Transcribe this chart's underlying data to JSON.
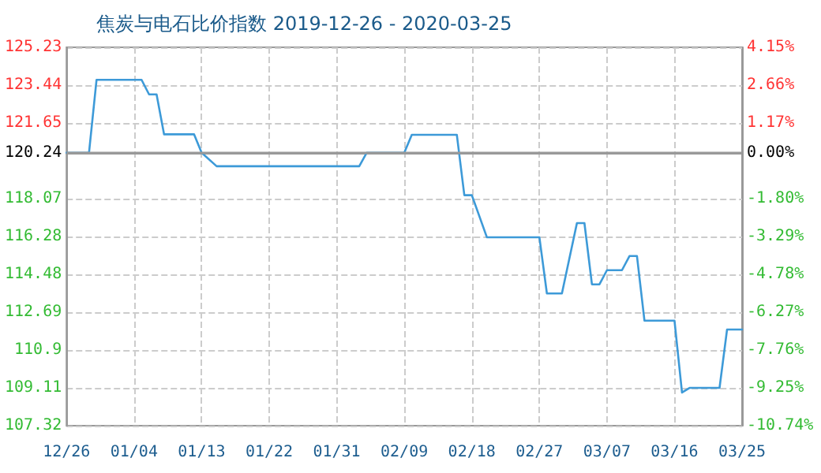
{
  "chart_data": {
    "type": "line",
    "title": "焦炭与电石比价指数 2019-12-26 - 2020-03-25",
    "x": [
      "2019-12-26",
      "2019-12-29",
      "2019-12-30",
      "2020-01-05",
      "2020-01-06",
      "2020-01-07",
      "2020-01-08",
      "2020-01-12",
      "2020-01-13",
      "2020-01-15",
      "2020-02-03",
      "2020-02-04",
      "2020-02-09",
      "2020-02-10",
      "2020-02-16",
      "2020-02-17",
      "2020-02-18",
      "2020-02-20",
      "2020-02-27",
      "2020-02-28",
      "2020-03-01",
      "2020-03-03",
      "2020-03-04",
      "2020-03-05",
      "2020-03-06",
      "2020-03-07",
      "2020-03-09",
      "2020-03-10",
      "2020-03-11",
      "2020-03-12",
      "2020-03-16",
      "2020-03-17",
      "2020-03-18",
      "2020-03-22",
      "2020-03-23",
      "2020-03-25"
    ],
    "series": [
      {
        "color": "#3d9ad8",
        "values": [
          120.24,
          120.24,
          123.69,
          123.69,
          123.0,
          123.0,
          121.11,
          121.11,
          120.24,
          119.6,
          119.6,
          120.24,
          120.24,
          121.09,
          121.09,
          118.23,
          118.23,
          116.24,
          116.24,
          113.58,
          113.58,
          116.91,
          116.91,
          114.01,
          114.01,
          114.68,
          114.68,
          115.35,
          115.35,
          112.29,
          112.29,
          108.89,
          109.11,
          109.11,
          111.87,
          111.87
        ]
      }
    ],
    "xlim": [
      "2019-12-26",
      "2020-03-25"
    ],
    "xticks": [
      {
        "value": "2019-12-26",
        "label": "12/26"
      },
      {
        "value": "2020-01-04",
        "label": "01/04"
      },
      {
        "value": "2020-01-13",
        "label": "01/13"
      },
      {
        "value": "2020-01-22",
        "label": "01/22"
      },
      {
        "value": "2020-01-31",
        "label": "01/31"
      },
      {
        "value": "2020-02-09",
        "label": "02/09"
      },
      {
        "value": "2020-02-18",
        "label": "02/18"
      },
      {
        "value": "2020-02-27",
        "label": "02/27"
      },
      {
        "value": "2020-03-07",
        "label": "03/07"
      },
      {
        "value": "2020-03-16",
        "label": "03/16"
      },
      {
        "value": "2020-03-25",
        "label": "03/25"
      }
    ],
    "ylim": [
      107.32,
      125.23
    ],
    "yticks": [
      107.32,
      109.11,
      110.9,
      112.69,
      114.48,
      116.28,
      118.07,
      120.24,
      121.65,
      123.44,
      125.23
    ],
    "y2lim": [
      -10.74,
      4.15
    ],
    "y2ticks": [
      {
        "value": -10.74,
        "label": "-10.74%"
      },
      {
        "value": -9.25,
        "label": "-9.25%"
      },
      {
        "value": -7.76,
        "label": "-7.76%"
      },
      {
        "value": -6.27,
        "label": "-6.27%"
      },
      {
        "value": -4.78,
        "label": "-4.78%"
      },
      {
        "value": -3.29,
        "label": "-3.29%"
      },
      {
        "value": -1.8,
        "label": "-1.80%"
      },
      {
        "value": 0,
        "label": "0.00%"
      },
      {
        "value": 1.17,
        "label": "1.17%"
      },
      {
        "value": 2.66,
        "label": "2.66%"
      },
      {
        "value": 4.15,
        "label": "4.15%"
      }
    ],
    "ref_lines": [
      {
        "axis": "y",
        "value": 120.24,
        "color": "#999999",
        "line_style": "solid"
      }
    ],
    "grid": true,
    "marker": "none",
    "line_style": "solid"
  }
}
